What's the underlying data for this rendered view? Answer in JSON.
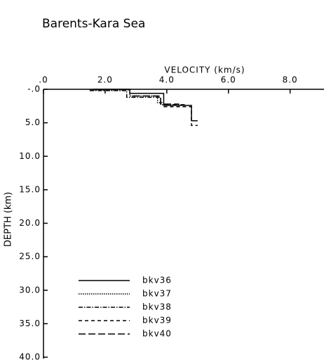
{
  "chart_data": {
    "type": "line",
    "title": "Barents-Kara Sea",
    "xlabel": "VELOCITY (km/s)",
    "ylabel": "DEPTH (km)",
    "xlim": [
      0,
      9.1
    ],
    "xticks": [
      {
        "value": 0,
        "label": ".0"
      },
      {
        "value": 2,
        "label": "2.0"
      },
      {
        "value": 4,
        "label": "4.0"
      },
      {
        "value": 6,
        "label": "6.0"
      },
      {
        "value": 8,
        "label": "8.0"
      }
    ],
    "ylim": [
      40,
      0
    ],
    "yticks": [
      {
        "value": 0,
        "label": "-.0"
      },
      {
        "value": 5,
        "label": "5.0"
      },
      {
        "value": 10,
        "label": "10.0"
      },
      {
        "value": 15,
        "label": "15.0"
      },
      {
        "value": 20,
        "label": "20.0"
      },
      {
        "value": 25,
        "label": "25.0"
      },
      {
        "value": 30,
        "label": "30.0"
      },
      {
        "value": 35,
        "label": "35.0"
      },
      {
        "value": 40,
        "label": "40.0"
      }
    ],
    "series": [
      {
        "name": "bkv36",
        "color": "#000000",
        "style": "solid",
        "x": [
          1.6,
          2.8,
          2.8,
          3.9,
          3.9,
          4.8,
          4.8,
          5.0
        ],
        "values": [
          0,
          0,
          0.6,
          0.6,
          2.4,
          2.4,
          4.7,
          4.7
        ]
      },
      {
        "name": "bkv37",
        "color": "#000000",
        "style": "dotted",
        "x": [
          1.5,
          2.8,
          2.8,
          3.7,
          3.7,
          3.9
        ],
        "values": [
          0.1,
          0.1,
          1.0,
          1.0,
          2.0,
          2.0
        ]
      },
      {
        "name": "bkv38",
        "color": "#000000",
        "style": "dashdot",
        "x": [
          1.5,
          2.7,
          2.7,
          3.8,
          3.8,
          4.6
        ],
        "values": [
          0.2,
          0.2,
          1.2,
          1.2,
          2.3,
          2.3
        ]
      },
      {
        "name": "bkv39",
        "color": "#000000",
        "style": "dashed",
        "x": [
          3.9,
          4.8,
          4.8,
          5.0
        ],
        "values": [
          2.6,
          2.6,
          5.4,
          5.4
        ]
      },
      {
        "name": "bkv40",
        "color": "#000000",
        "style": "longdash",
        "x": [
          2.9,
          3.8,
          3.8,
          4.4
        ],
        "values": [
          1.0,
          1.0,
          2.2,
          2.2
        ]
      }
    ]
  }
}
